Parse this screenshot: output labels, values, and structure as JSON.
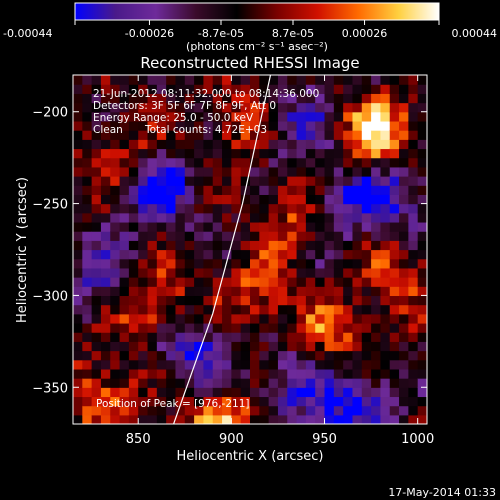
{
  "colorbar": {
    "tick_labels": [
      "-0.00044",
      "-0.00026",
      "-8.7e-05",
      "8.7e-05",
      "0.00026",
      "0.00044"
    ],
    "tick_values": [
      -0.00044,
      -0.00026,
      -8.7e-05,
      8.7e-05,
      0.00026,
      0.00044
    ],
    "range": [
      -0.00044,
      0.00044
    ],
    "units_label": "(photons cm⁻² s⁻¹ asec⁻²)",
    "colormap": [
      "#0000ff",
      "#4a1a8a",
      "#6e2a9a",
      "#3a0a2a",
      "#000000",
      "#7a0000",
      "#d01000",
      "#ff6a00",
      "#ffd040",
      "#ffffff"
    ]
  },
  "chart_data": {
    "type": "heatmap",
    "title": "Reconstructed RHESSI Image",
    "xlabel": "Heliocentric X (arcsec)",
    "ylabel": "Heliocentric Y (arcsec)",
    "xlim": [
      815,
      1005
    ],
    "ylim": [
      -370,
      -180
    ],
    "x_ticks": [
      850,
      900,
      950,
      1000
    ],
    "y_ticks": [
      -350,
      -300,
      -250,
      -200
    ],
    "grid": false,
    "limb_curve": [
      {
        "x": 869,
        "y": -370
      },
      {
        "x": 890,
        "y": -310
      },
      {
        "x": 906,
        "y": -250
      },
      {
        "x": 921,
        "y": -180
      }
    ],
    "hot_spots": [
      {
        "x": 978,
        "y": -211,
        "intensity": 1.0
      },
      {
        "x": 858,
        "y": -305,
        "intensity": 0.75
      },
      {
        "x": 915,
        "y": -300,
        "intensity": 0.6
      },
      {
        "x": 895,
        "y": -368,
        "intensity": 0.8
      },
      {
        "x": 830,
        "y": -355,
        "intensity": 0.7
      },
      {
        "x": 845,
        "y": -225,
        "intensity": 0.55
      },
      {
        "x": 955,
        "y": -320,
        "intensity": 0.55
      },
      {
        "x": 990,
        "y": -290,
        "intensity": 0.5
      },
      {
        "x": 935,
        "y": -255,
        "intensity": 0.55
      },
      {
        "x": 905,
        "y": -205,
        "intensity": 0.5
      }
    ],
    "cold_spots": [
      {
        "x": 860,
        "y": -240,
        "intensity": -0.9
      },
      {
        "x": 880,
        "y": -330,
        "intensity": -0.8
      },
      {
        "x": 960,
        "y": -250,
        "intensity": -0.7
      },
      {
        "x": 965,
        "y": -360,
        "intensity": -0.9
      },
      {
        "x": 930,
        "y": -350,
        "intensity": -0.6
      },
      {
        "x": 935,
        "y": -205,
        "intensity": -0.6
      },
      {
        "x": 990,
        "y": -245,
        "intensity": -0.6
      },
      {
        "x": 830,
        "y": -290,
        "intensity": -0.6
      }
    ],
    "annotations": {
      "time_range": "21-Jun-2012 08:11:32.000 to 08:14:36.000",
      "detectors": "Detectors: 3F 5F 6F 7F 8F 9F, Att 0",
      "energy": "Energy Range: 25.0 - 50.0 keV",
      "clean": "Clean",
      "total_counts": "Total counts: 4.72E+03",
      "peak": "Position of Peak = [976,-211]"
    },
    "peak_position": [
      976,
      -211
    ]
  },
  "footer": {
    "timestamp": "17-May-2014 01:33"
  }
}
